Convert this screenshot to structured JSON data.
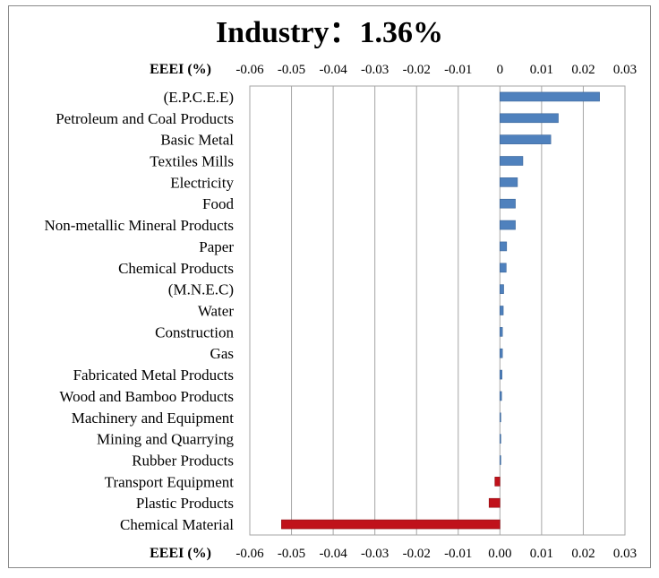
{
  "chart_data": {
    "type": "bar",
    "orientation": "horizontal",
    "title": "Industry：1.36%",
    "xlabel": "EEEI (%)",
    "xlim": [
      -0.06,
      0.03
    ],
    "x_ticks_top": [
      "-0.06",
      "-0.05",
      "-0.04",
      "-0.03",
      "-0.02",
      "-0.01",
      "0",
      "0.01",
      "0.02",
      "0.03"
    ],
    "x_ticks_bottom": [
      "-0.06",
      "-0.05",
      "-0.04",
      "-0.03",
      "-0.02",
      "-0.01",
      "0.00",
      "0.01",
      "0.02",
      "0.03"
    ],
    "grid": true,
    "positive_color": "#4f81bd",
    "negative_color": "#c0121b",
    "categories": [
      "(E.P.C.E.E)",
      "Petroleum and Coal Products",
      "Basic Metal",
      "Textiles Mills",
      "Electricity",
      "Food",
      "Non-metallic Mineral Products",
      "Paper",
      "Chemical Products",
      "(M.N.E.C)",
      "Water",
      "Construction",
      "Gas",
      "Fabricated Metal Products",
      "Wood and Bamboo Products",
      "Machinery and Equipment",
      "Mining and Quarrying",
      "Rubber Products",
      "Transport Equipment",
      "Plastic Products",
      "Chemical Material"
    ],
    "values": [
      0.0239,
      0.014,
      0.0122,
      0.0055,
      0.0042,
      0.0037,
      0.0037,
      0.0016,
      0.0015,
      0.0009,
      0.0008,
      0.0006,
      0.0006,
      0.0005,
      0.0004,
      0.0002,
      0.0002,
      0.0001,
      -0.0012,
      -0.0026,
      -0.0524
    ]
  }
}
